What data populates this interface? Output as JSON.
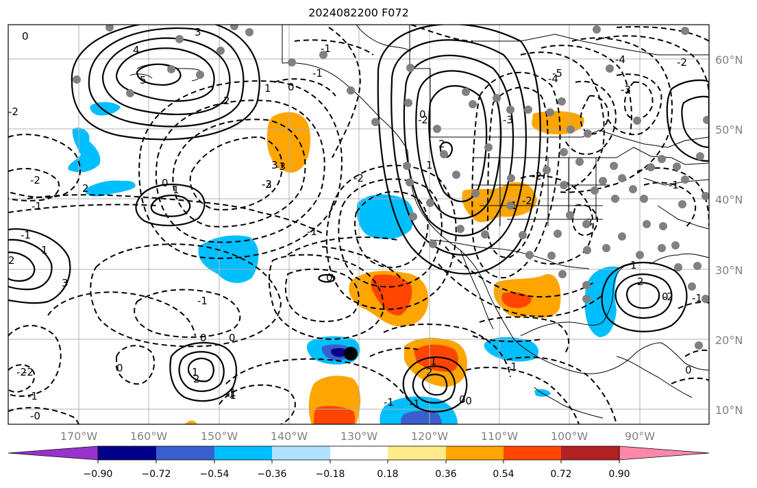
{
  "title": "2024082200 F072",
  "lat_labels": [
    "60°N",
    "50°N",
    "40°N",
    "30°N",
    "20°N",
    "10°N"
  ],
  "lon_labels": [
    "170°W",
    "160°W",
    "150°W",
    "140°W",
    "130°W",
    "120°W",
    "110°W",
    "100°W",
    "90°W"
  ],
  "colorbar": {
    "colors": [
      "#9932cc",
      "#00008b",
      "#3a5fcd",
      "#00bfff",
      "#b0e2ff",
      "#ffffff",
      "#ffeb8a",
      "#ffa500",
      "#ff4500",
      "#b22222",
      "#ff88aa"
    ],
    "tick_labels": [
      "−0.90",
      "−0.72",
      "−0.54",
      "−0.36",
      "−0.18",
      "0.18",
      "0.36",
      "0.54",
      "0.72",
      "0.90"
    ]
  },
  "contour_labels": [
    "0",
    "4",
    "3",
    "5",
    "2",
    "1",
    "0",
    "-1",
    "-1",
    "-2",
    "-2",
    "-1",
    "-1",
    "-3",
    "-3",
    "-2",
    "2",
    "1",
    "0",
    "1",
    "2",
    "3",
    "-2",
    "-1",
    "-0",
    "-1",
    "-1",
    "-2",
    "0",
    "1",
    "3",
    "2",
    "0",
    "0",
    "-1",
    "-1",
    "-2",
    "2",
    "1",
    "0",
    "-3",
    "-2",
    "-1",
    "-4",
    "-2",
    "-3",
    "-4",
    "-5",
    "1",
    "-3",
    "2",
    "-2",
    "-1",
    "-1",
    "0",
    "0",
    "1",
    "2",
    "-1",
    "-1",
    "-0",
    "0",
    "-1",
    "-1",
    "-2",
    "-2",
    "-3",
    "0"
  ],
  "colors": {
    "land_line": "#000000",
    "grid": "#b0b0b0",
    "station": "#808080",
    "marker": "#000000"
  }
}
